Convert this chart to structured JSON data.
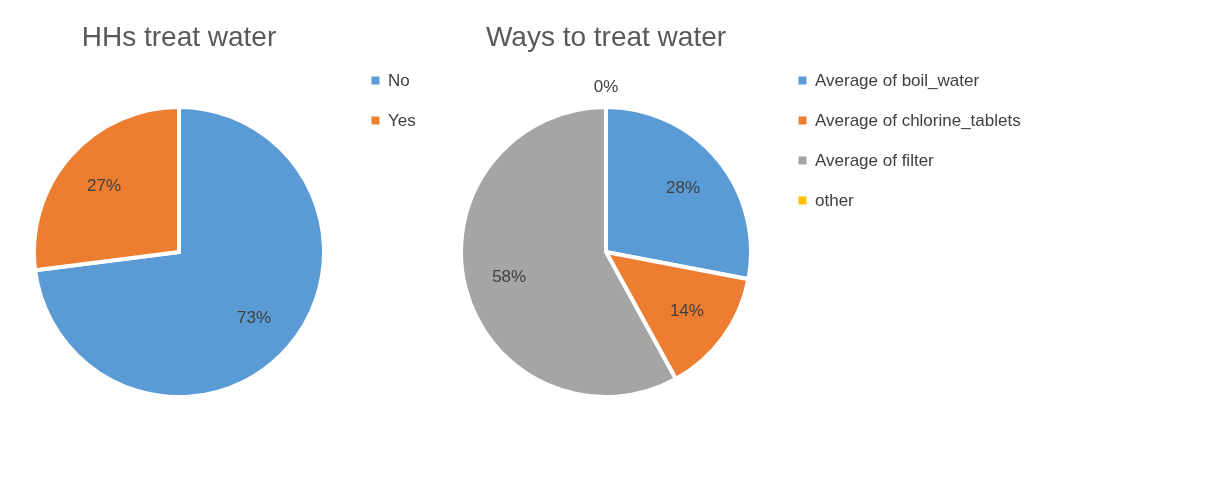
{
  "chart_data": [
    {
      "type": "pie",
      "title": "HHs  treat water",
      "categories": [
        "No",
        "Yes"
      ],
      "values": [
        73,
        27
      ],
      "colors": [
        "#5b9bd5",
        "#ed7d31"
      ],
      "value_labels": [
        "73%",
        "27%"
      ],
      "legend": "right"
    },
    {
      "type": "pie",
      "title": "Ways to treat water",
      "categories": [
        "Average of boil_water",
        "Average of chlorine_tablets",
        "Average of filter",
        "other"
      ],
      "values": [
        28,
        14,
        58,
        0
      ],
      "colors": [
        "#5b9bd5",
        "#ed7d31",
        "#a5a5a5",
        "#ffc000"
      ],
      "value_labels": [
        "28%",
        "14%",
        "58%",
        "0%"
      ],
      "legend": "right"
    }
  ]
}
